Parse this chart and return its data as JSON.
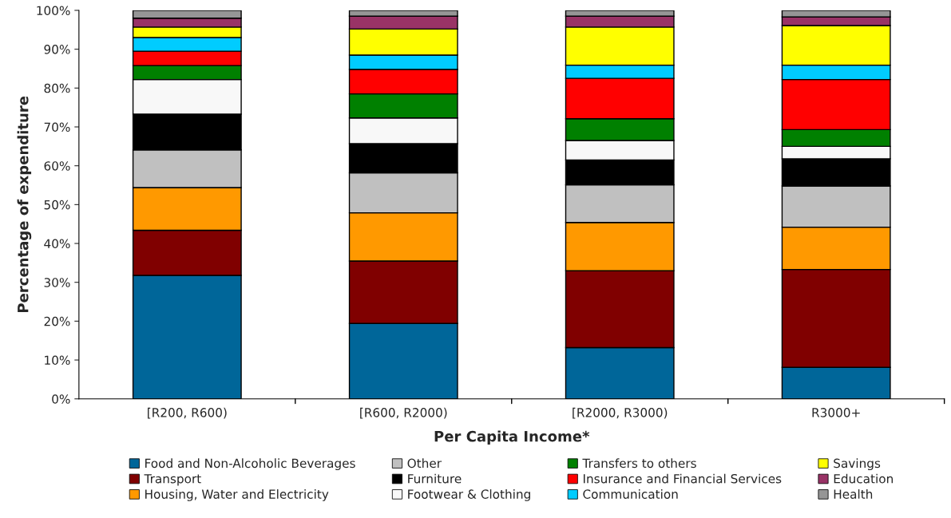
{
  "chart_data": {
    "type": "bar",
    "stacked": true,
    "xlabel": "Per Capita Income*",
    "ylabel": "Percentage of expenditure",
    "categories": [
      "[R200, R600)",
      "[R600, R2000)",
      "[R2000, R3000)",
      "R3000+"
    ],
    "series": [
      {
        "name": "Food and Non-Alcoholic Beverages",
        "color": "#006699",
        "values": [
          31.8,
          19.4,
          13.2,
          8.1
        ]
      },
      {
        "name": "Transport",
        "color": "#800000",
        "values": [
          11.6,
          16.1,
          19.8,
          25.2
        ]
      },
      {
        "name": "Housing, Water and Electricity",
        "color": "#ff9900",
        "values": [
          11.0,
          12.4,
          12.4,
          10.9
        ]
      },
      {
        "name": "Other",
        "color": "#c0c0c0",
        "values": [
          9.7,
          10.3,
          9.7,
          10.6
        ]
      },
      {
        "name": "Furniture",
        "color": "#000000",
        "values": [
          9.2,
          7.5,
          6.4,
          7.0
        ]
      },
      {
        "name": "Footwear & Clothing",
        "color": "#f8f8f8",
        "values": [
          8.9,
          6.6,
          5.0,
          3.2
        ]
      },
      {
        "name": "Transfers to others",
        "color": "#008000",
        "values": [
          3.6,
          6.2,
          5.6,
          4.3
        ]
      },
      {
        "name": "Insurance and Financial Services",
        "color": "#ff0000",
        "values": [
          3.7,
          6.3,
          10.4,
          12.9
        ]
      },
      {
        "name": "Communication",
        "color": "#00ccff",
        "values": [
          3.5,
          3.7,
          3.4,
          3.7
        ]
      },
      {
        "name": "Savings",
        "color": "#ffff00",
        "values": [
          2.7,
          6.7,
          9.8,
          10.2
        ]
      },
      {
        "name": "Education",
        "color": "#993366",
        "values": [
          2.3,
          3.3,
          2.8,
          2.2
        ]
      },
      {
        "name": "Health",
        "color": "#969696",
        "values": [
          2.0,
          1.5,
          1.5,
          1.7
        ]
      }
    ],
    "ylim": [
      0,
      100
    ],
    "yticks": [
      {
        "value": 0,
        "label": "0%"
      },
      {
        "value": 10,
        "label": "10%"
      },
      {
        "value": 20,
        "label": "20%"
      },
      {
        "value": 30,
        "label": "30%"
      },
      {
        "value": 40,
        "label": "40%"
      },
      {
        "value": 50,
        "label": "50%"
      },
      {
        "value": 60,
        "label": "60%"
      },
      {
        "value": 70,
        "label": "70%"
      },
      {
        "value": 80,
        "label": "80%"
      },
      {
        "value": 90,
        "label": "90%"
      },
      {
        "value": 100,
        "label": "100%"
      }
    ],
    "legend": "bottom"
  }
}
